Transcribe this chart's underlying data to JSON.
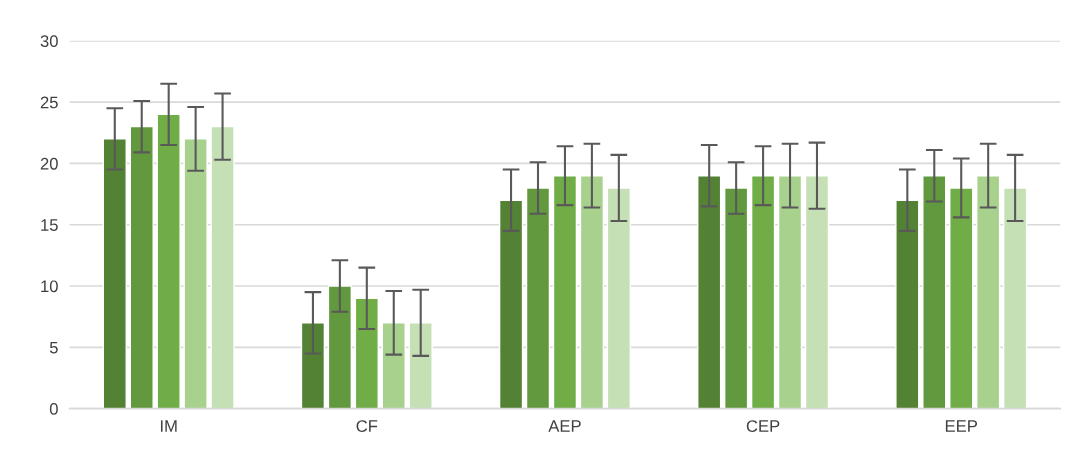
{
  "chart_data": {
    "type": "bar",
    "categories": [
      "IM",
      "CF",
      "AEP",
      "CEP",
      "EEP"
    ],
    "series": [
      {
        "color": "#548235",
        "values": [
          22,
          7,
          17,
          19,
          17
        ],
        "errors": [
          2.5,
          2.5,
          2.5,
          2.5,
          2.5
        ]
      },
      {
        "color": "#62993e",
        "values": [
          23,
          10,
          18,
          18,
          19
        ],
        "errors": [
          2.1,
          2.1,
          2.1,
          2.1,
          2.1
        ]
      },
      {
        "color": "#70ad47",
        "values": [
          24,
          9,
          19,
          19,
          18
        ],
        "errors": [
          2.5,
          2.5,
          2.4,
          2.4,
          2.4
        ]
      },
      {
        "color": "#a9d18e",
        "values": [
          22,
          7,
          19,
          19,
          19
        ],
        "errors": [
          2.6,
          2.6,
          2.6,
          2.6,
          2.6
        ]
      },
      {
        "color": "#c5e0b4",
        "values": [
          23,
          7,
          18,
          19,
          18
        ],
        "errors": [
          2.7,
          2.7,
          2.7,
          2.7,
          2.7
        ]
      }
    ],
    "ylim": [
      0,
      30
    ],
    "yticks": [
      0,
      5,
      10,
      15,
      20,
      25,
      30
    ],
    "grid": "y",
    "legend": false
  }
}
